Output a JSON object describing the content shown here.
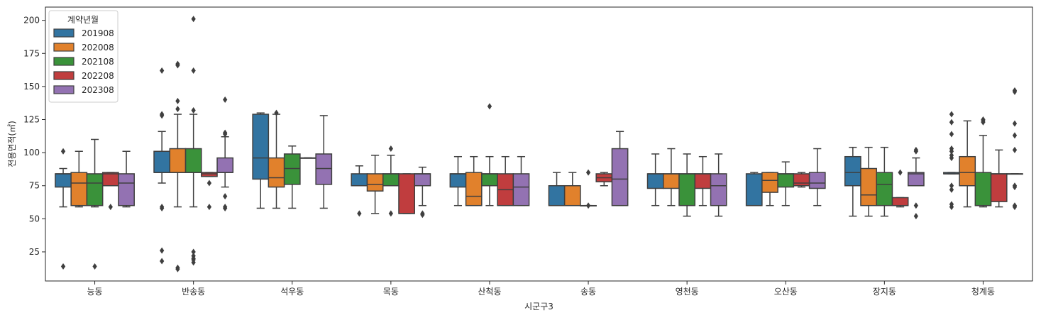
{
  "chart_data": {
    "type": "boxplot",
    "xlabel": "시군구3",
    "ylabel": "전용면적(㎡)",
    "ylim": [
      3,
      210
    ],
    "yticks": [
      25,
      50,
      75,
      100,
      125,
      150,
      175,
      200
    ],
    "grid": false,
    "legend": {
      "title": "계약년월",
      "placement": "top-left",
      "entries": [
        "201908",
        "202008",
        "202108",
        "202208",
        "202308"
      ]
    },
    "colors": [
      "#3274a1",
      "#e1812c",
      "#3a923a",
      "#c03d3e",
      "#9372b2"
    ],
    "categories": [
      "능동",
      "반송동",
      "석우동",
      "목동",
      "산척동",
      "송동",
      "영천동",
      "오산동",
      "장지동",
      "청계동"
    ],
    "series": [
      {
        "name": "201908",
        "boxes": [
          {
            "q1": 74,
            "median": 84,
            "q3": 84,
            "whislo": 59,
            "whishi": 88,
            "fliers": [
              101,
              14
            ]
          },
          {
            "q1": 85,
            "median": 85,
            "q3": 101,
            "whislo": 77,
            "whishi": 116,
            "fliers": [
              162,
              129,
              128,
              59,
              58,
              26,
              18
            ]
          },
          {
            "q1": 80,
            "median": 96,
            "q3": 129,
            "whislo": 58,
            "whishi": 130,
            "fliers": []
          },
          {
            "q1": 75,
            "median": 75,
            "q3": 84,
            "whislo": 75,
            "whishi": 90,
            "fliers": [
              54
            ]
          },
          {
            "q1": 74,
            "median": 84,
            "q3": 84,
            "whislo": 60,
            "whishi": 97,
            "fliers": []
          },
          {
            "q1": 60,
            "median": 60,
            "q3": 75,
            "whislo": 60,
            "whishi": 85,
            "fliers": []
          },
          {
            "q1": 73,
            "median": 84,
            "q3": 84,
            "whislo": 60,
            "whishi": 99,
            "fliers": []
          },
          {
            "q1": 60,
            "median": 60,
            "q3": 84,
            "whislo": 60,
            "whishi": 85,
            "fliers": []
          },
          {
            "q1": 75,
            "median": 85,
            "q3": 97,
            "whislo": 52,
            "whishi": 104,
            "fliers": []
          },
          {
            "q1": 84,
            "median": 84,
            "q3": 85,
            "whislo": 84,
            "whishi": 85,
            "fliers": [
              129,
              123,
              114,
              103,
              101,
              98,
              96,
              75,
              72,
              61,
              59
            ]
          }
        ]
      },
      {
        "name": "202008",
        "boxes": [
          {
            "q1": 60,
            "median": 77,
            "q3": 85,
            "whislo": 59,
            "whishi": 101,
            "fliers": []
          },
          {
            "q1": 85,
            "median": 85,
            "q3": 103,
            "whislo": 59,
            "whishi": 129,
            "fliers": [
              167,
              166,
              139,
              133,
              12,
              13
            ]
          },
          {
            "q1": 74,
            "median": 81,
            "q3": 96,
            "whislo": 58,
            "whishi": 129,
            "fliers": [
              130
            ]
          },
          {
            "q1": 71,
            "median": 76,
            "q3": 84,
            "whislo": 54,
            "whishi": 98,
            "fliers": []
          },
          {
            "q1": 60,
            "median": 67,
            "q3": 85,
            "whislo": 60,
            "whishi": 97,
            "fliers": []
          },
          {
            "q1": 60,
            "median": 60,
            "q3": 75,
            "whislo": 60,
            "whishi": 85,
            "fliers": []
          },
          {
            "q1": 73,
            "median": 84,
            "q3": 84,
            "whislo": 60,
            "whishi": 103,
            "fliers": []
          },
          {
            "q1": 70,
            "median": 79,
            "q3": 85,
            "whislo": 60,
            "whishi": 85,
            "fliers": []
          },
          {
            "q1": 60,
            "median": 68,
            "q3": 88,
            "whislo": 52,
            "whishi": 104,
            "fliers": []
          },
          {
            "q1": 75,
            "median": 85,
            "q3": 97,
            "whislo": 59,
            "whishi": 124,
            "fliers": []
          }
        ]
      },
      {
        "name": "202108",
        "boxes": [
          {
            "q1": 60,
            "median": 77,
            "q3": 84,
            "whislo": 59,
            "whishi": 110,
            "fliers": [
              14
            ]
          },
          {
            "q1": 85,
            "median": 85,
            "q3": 103,
            "whislo": 59,
            "whishi": 129,
            "fliers": [
              201,
              162,
              132,
              25,
              22,
              20,
              19,
              17
            ]
          },
          {
            "q1": 76,
            "median": 88,
            "q3": 99,
            "whislo": 58,
            "whishi": 105,
            "fliers": []
          },
          {
            "q1": 75,
            "median": 84,
            "q3": 84,
            "whislo": 75,
            "whishi": 98,
            "fliers": [
              103,
              54
            ]
          },
          {
            "q1": 75,
            "median": 84,
            "q3": 84,
            "whislo": 60,
            "whishi": 97,
            "fliers": [
              135
            ]
          },
          {
            "q1": 60,
            "median": 60,
            "q3": 60,
            "whislo": 60,
            "whishi": 60,
            "fliers": [
              85,
              60
            ]
          },
          {
            "q1": 60,
            "median": 84,
            "q3": 84,
            "whislo": 52,
            "whishi": 99,
            "fliers": []
          },
          {
            "q1": 74,
            "median": 84,
            "q3": 84,
            "whislo": 60,
            "whishi": 93,
            "fliers": []
          },
          {
            "q1": 60,
            "median": 76,
            "q3": 85,
            "whislo": 52,
            "whishi": 104,
            "fliers": []
          },
          {
            "q1": 60,
            "median": 60,
            "q3": 85,
            "whislo": 59,
            "whishi": 113,
            "fliers": [
              125,
              124,
              123
            ]
          }
        ]
      },
      {
        "name": "202208",
        "boxes": [
          {
            "q1": 75,
            "median": 84,
            "q3": 85,
            "whislo": 75,
            "whishi": 85,
            "fliers": [
              59
            ]
          },
          {
            "q1": 82,
            "median": 84,
            "q3": 85,
            "whislo": 82,
            "whishi": 85,
            "fliers": [
              77,
              59
            ]
          },
          {
            "q1": 96,
            "median": 96,
            "q3": 96,
            "whislo": 96,
            "whishi": 96,
            "fliers": []
          },
          {
            "q1": 54,
            "median": 54,
            "q3": 84,
            "whislo": 54,
            "whishi": 84,
            "fliers": []
          },
          {
            "q1": 60,
            "median": 72,
            "q3": 84,
            "whislo": 60,
            "whishi": 97,
            "fliers": []
          },
          {
            "q1": 78,
            "median": 81,
            "q3": 84,
            "whislo": 75,
            "whishi": 85,
            "fliers": []
          },
          {
            "q1": 73,
            "median": 84,
            "q3": 84,
            "whislo": 60,
            "whishi": 97,
            "fliers": []
          },
          {
            "q1": 75,
            "median": 77,
            "q3": 84,
            "whislo": 74,
            "whishi": 85,
            "fliers": []
          },
          {
            "q1": 60,
            "median": 60,
            "q3": 66,
            "whislo": 59,
            "whishi": 66,
            "fliers": [
              85
            ]
          },
          {
            "q1": 63,
            "median": 84,
            "q3": 84,
            "whislo": 59,
            "whishi": 102,
            "fliers": []
          }
        ]
      },
      {
        "name": "202308",
        "boxes": [
          {
            "q1": 60,
            "median": 77,
            "q3": 84,
            "whislo": 59,
            "whishi": 101,
            "fliers": []
          },
          {
            "q1": 85,
            "median": 85,
            "q3": 96,
            "whislo": 74,
            "whishi": 112,
            "fliers": [
              140,
              115,
              114,
              67,
              59,
              58
            ]
          },
          {
            "q1": 76,
            "median": 88,
            "q3": 99,
            "whislo": 58,
            "whishi": 128,
            "fliers": []
          },
          {
            "q1": 75,
            "median": 84,
            "q3": 84,
            "whislo": 60,
            "whishi": 89,
            "fliers": [
              54,
              53
            ]
          },
          {
            "q1": 60,
            "median": 74,
            "q3": 84,
            "whislo": 60,
            "whishi": 97,
            "fliers": []
          },
          {
            "q1": 60,
            "median": 80,
            "q3": 103,
            "whislo": 60,
            "whishi": 116,
            "fliers": []
          },
          {
            "q1": 60,
            "median": 75,
            "q3": 84,
            "whislo": 52,
            "whishi": 99,
            "fliers": []
          },
          {
            "q1": 73,
            "median": 77,
            "q3": 85,
            "whislo": 60,
            "whishi": 103,
            "fliers": []
          },
          {
            "q1": 75,
            "median": 84,
            "q3": 85,
            "whislo": 75,
            "whishi": 96,
            "fliers": [
              102,
              101,
              60,
              52
            ]
          },
          {
            "q1": 84,
            "median": 84,
            "q3": 84,
            "whislo": 84,
            "whishi": 84,
            "fliers": [
              147,
              146,
              122,
              113,
              102,
              75,
              74,
              60,
              59
            ]
          }
        ]
      }
    ]
  }
}
